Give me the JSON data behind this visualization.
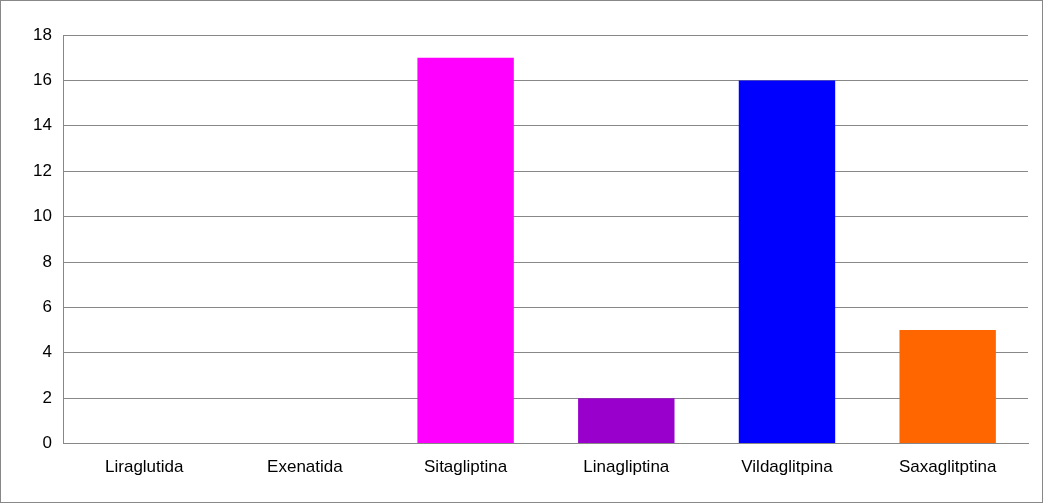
{
  "chart_data": {
    "type": "bar",
    "categories": [
      "Liraglutida",
      "Exenatida",
      "Sitagliptina",
      "Linagliptina",
      "Vildaglitpina",
      "Saxaglitptina"
    ],
    "values": [
      0,
      0,
      17,
      2,
      16,
      5
    ],
    "colors": [
      "#4f81bd",
      "#c0504d",
      "#ff00ff",
      "#9900cc",
      "#0000ff",
      "#ff6600"
    ],
    "ylim": [
      0,
      18
    ],
    "yticks": [
      0,
      2,
      4,
      6,
      8,
      10,
      12,
      14,
      16,
      18
    ],
    "grid": "y",
    "legend": false
  }
}
